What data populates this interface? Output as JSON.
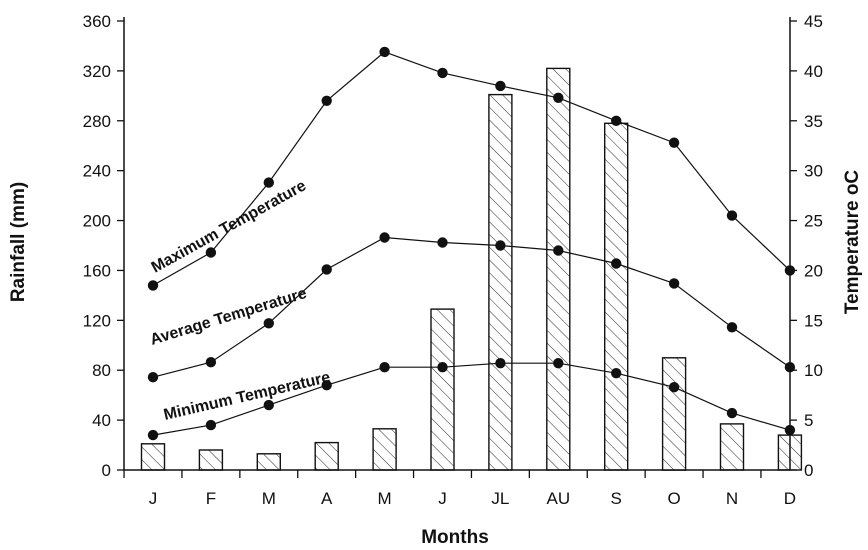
{
  "chart_data": {
    "type": "bar+line",
    "xlabel": "Months",
    "ylabel_left": "Rainfall (mm)",
    "ylabel_right": "Temperature oC",
    "categories": [
      "J",
      "F",
      "M",
      "A",
      "M",
      "J",
      "JL",
      "AU",
      "S",
      "O",
      "N",
      "D"
    ],
    "left_ticks": [
      "0",
      "40",
      "80",
      "120",
      "160",
      "200",
      "240",
      "280",
      "320",
      "360"
    ],
    "right_ticks": [
      "0",
      "5",
      "10",
      "15",
      "20",
      "25",
      "30",
      "35",
      "40",
      "45"
    ],
    "ylim_left": [
      0,
      360
    ],
    "ylim_right": [
      0,
      45
    ],
    "rainfall": {
      "axis": "left",
      "values": [
        21,
        16,
        13,
        22,
        33,
        129,
        301,
        322,
        278,
        90,
        37,
        28
      ]
    },
    "series": [
      {
        "name": "Maximum Temperature",
        "axis": "right",
        "values": [
          18.5,
          21.8,
          28.8,
          37,
          41.9,
          39.8,
          38.5,
          37.3,
          35,
          32.8,
          25.5,
          20
        ]
      },
      {
        "name": "Average Temperature",
        "axis": "right",
        "values": [
          9.3,
          10.8,
          14.7,
          20.1,
          23.3,
          22.8,
          22.5,
          22,
          20.7,
          18.7,
          14.3,
          10.3
        ]
      },
      {
        "name": "Minimum Temperature",
        "axis": "right",
        "values": [
          3.5,
          4.5,
          6.5,
          8.5,
          10.3,
          10.3,
          10.7,
          10.7,
          9.7,
          8.3,
          5.7,
          4
        ]
      }
    ],
    "grid": false,
    "legend": "inline"
  }
}
